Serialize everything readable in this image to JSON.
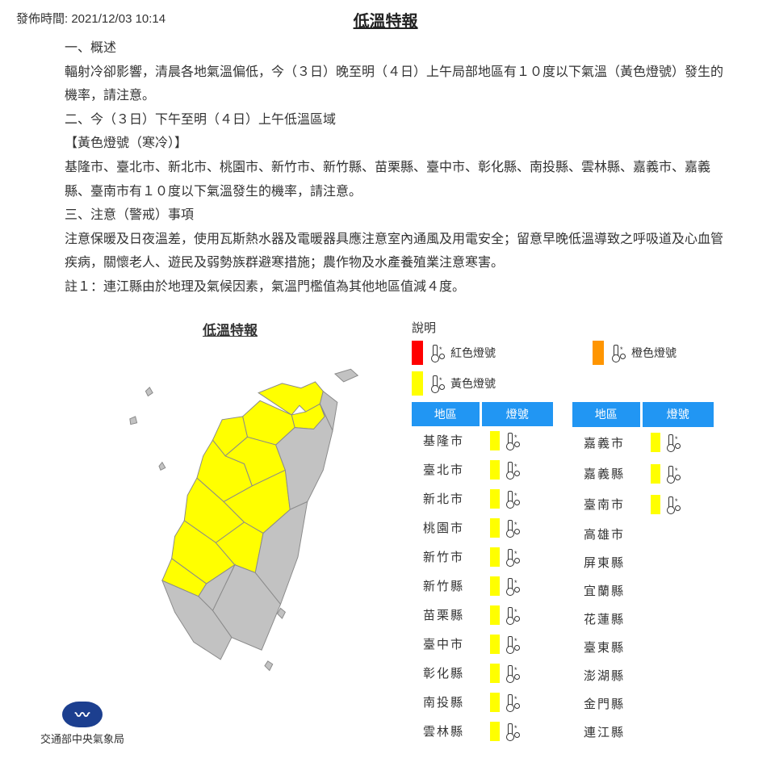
{
  "publish_label": "發佈時間: 2021/12/03 10:14",
  "title": "低溫特報",
  "content_lines": [
    "一、概述",
    "輻射冷卻影響，清晨各地氣溫偏低，今（３日）晚至明（４日）上午局部地區有１０度以下氣溫（黃色燈號）發生的機率，請注意。",
    "二、今（３日）下午至明（４日）上午低溫區域",
    "【黃色燈號（寒冷）】",
    "基隆市、臺北市、新北市、桃園市、新竹市、新竹縣、苗栗縣、臺中市、彰化縣、南投縣、雲林縣、嘉義市、嘉義縣、臺南市有１０度以下氣溫發生的機率，請注意。",
    "三、注意（警戒）事項",
    "注意保暖及日夜溫差，使用瓦斯熱水器及電暖器具應注意室內通風及用電安全；留意早晚低溫導致之呼吸道及心血管疾病，關懷老人、遊民及弱勢族群避寒措施；農作物及水產養殖業注意寒害。",
    "註１：連江縣由於地理及氣候因素，氣溫門檻值為其他地區值減４度。"
  ],
  "map_title": "低溫特報",
  "bureau": "交通部中央氣象局",
  "legend": {
    "title": "說明",
    "items": [
      {
        "color": "#ff0000",
        "label": "紅色燈號"
      },
      {
        "color": "#ff9500",
        "label": "橙色燈號"
      },
      {
        "color": "#ffff00",
        "label": "黃色燈號"
      }
    ]
  },
  "colors": {
    "yellow": "#ffff00",
    "gray": "#c2c2c2",
    "border": "#8a8a8a",
    "header_blue": "#2196f3",
    "logo_blue": "#1c3f8f"
  },
  "table_headers": {
    "region": "地區",
    "signal": "燈號"
  },
  "regions_left": [
    {
      "name": "基隆市",
      "signal": "yellow"
    },
    {
      "name": "臺北市",
      "signal": "yellow"
    },
    {
      "name": "新北市",
      "signal": "yellow"
    },
    {
      "name": "桃園市",
      "signal": "yellow"
    },
    {
      "name": "新竹市",
      "signal": "yellow"
    },
    {
      "name": "新竹縣",
      "signal": "yellow"
    },
    {
      "name": "苗栗縣",
      "signal": "yellow"
    },
    {
      "name": "臺中市",
      "signal": "yellow"
    },
    {
      "name": "彰化縣",
      "signal": "yellow"
    },
    {
      "name": "南投縣",
      "signal": "yellow"
    },
    {
      "name": "雲林縣",
      "signal": "yellow"
    }
  ],
  "regions_right": [
    {
      "name": "嘉義市",
      "signal": "yellow"
    },
    {
      "name": "嘉義縣",
      "signal": "yellow"
    },
    {
      "name": "臺南市",
      "signal": "yellow"
    },
    {
      "name": "高雄市",
      "signal": null
    },
    {
      "name": "屏東縣",
      "signal": null
    },
    {
      "name": "宜蘭縣",
      "signal": null
    },
    {
      "name": "花蓮縣",
      "signal": null
    },
    {
      "name": "臺東縣",
      "signal": null
    },
    {
      "name": "澎湖縣",
      "signal": null
    },
    {
      "name": "金門縣",
      "signal": null
    },
    {
      "name": "連江縣",
      "signal": null
    }
  ],
  "map": {
    "yellow_regions": [
      "M218,62 L248,50 L272,56 L290,48 L300,60 L296,76 L278,86 L270,78 L260,90 Z",
      "M260,90 L278,86 L296,76 L302,92 L288,108 L264,106 Z",
      "M220,72 L260,90 L264,106 L240,128 L204,118 L198,92 Z",
      "M198,92 L204,118 L176,142 L160,122 L172,96 Z",
      "M160,122 L176,142 L200,152 L210,180 L174,200 L140,170 L148,142 Z",
      "M140,170 L174,200 L200,226 L164,252 L124,224 L128,192 Z",
      "M124,224 L164,252 L188,280 L152,304 L108,272 L112,244 Z",
      "M204,118 L240,128 L252,160 L210,180 L200,152 L176,142 Z",
      "M210,180 L252,160 L258,210 L224,240 L200,226 L174,200 Z",
      "M200,226 L224,240 L214,290 L188,280 L164,252 Z",
      "M108,272 L152,304 L142,320 L96,300 Z"
    ],
    "gray_regions": [
      "M300,60 L318,74 L312,110 L296,76 Z",
      "M296,76 L312,110 L300,160 L280,200 L258,210 L252,160 L240,128 L264,106 L288,108 L302,92 Z",
      "M258,210 L280,200 L268,270 L246,330 L214,290 L224,240 Z",
      "M214,290 L246,330 L222,388 L184,372 L160,338 L188,280 Z",
      "M152,304 L188,280 L160,338 L142,320 Z",
      "M142,320 L160,338 L184,372 L170,400 L136,378 L112,340 L96,300 Z"
    ],
    "islets": [
      "M315,38 L335,32 L344,40 L326,48 Z",
      "M75,60 L80,55 L84,62 L78,66 Z",
      "M55,95 L62,92 L64,100 L56,102 Z",
      "M92,155 L96,150 L100,157 L94,160 Z",
      "M246,335 L252,340 L248,348 L242,342 Z",
      "M230,402 L236,406 L232,414 L226,408 Z"
    ]
  }
}
